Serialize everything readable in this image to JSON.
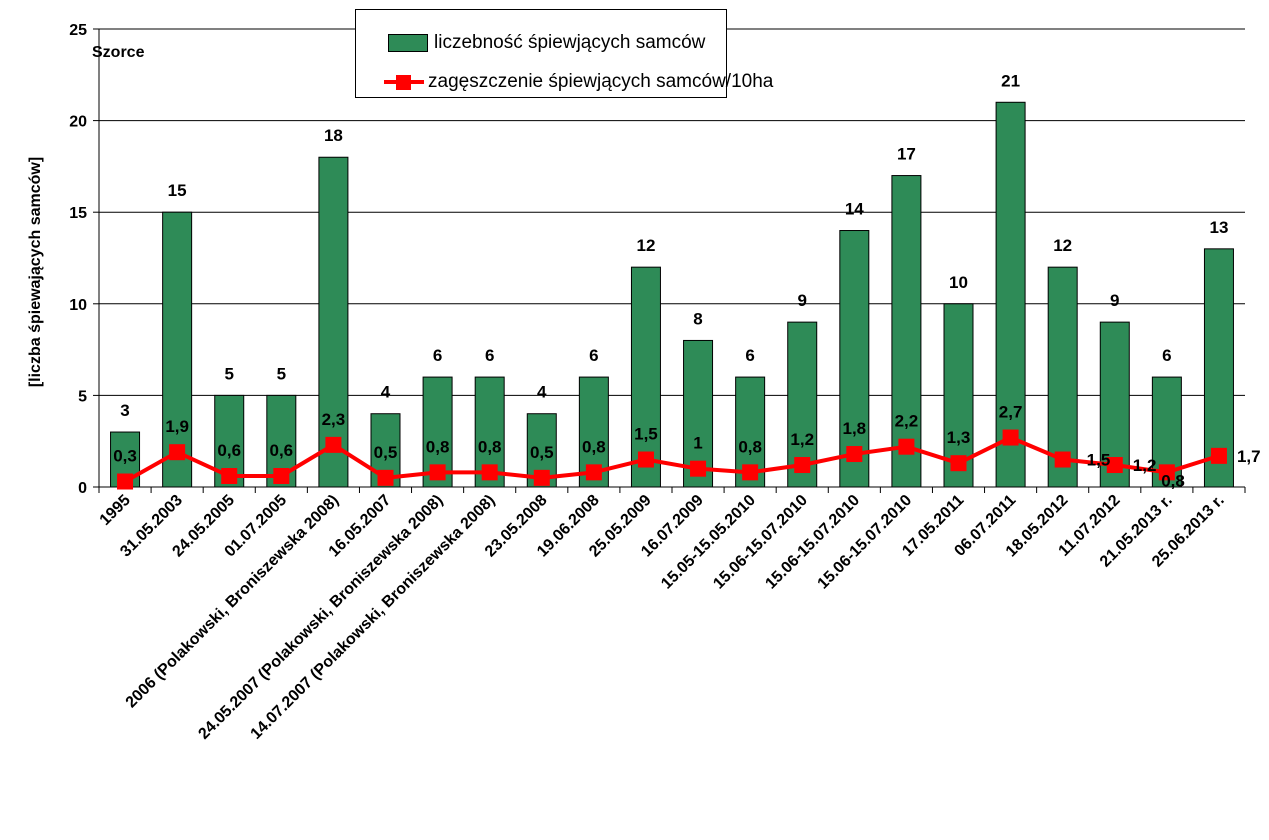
{
  "chart_data": {
    "type": "bar",
    "title": "",
    "xlabel": "",
    "ylabel": "[liczba śpiewających samców]",
    "corner_label": "Szorce",
    "ylim": [
      0,
      25
    ],
    "yticks": [
      0,
      5,
      10,
      15,
      20,
      25
    ],
    "grid": true,
    "legend_position": "top-center",
    "colors": {
      "bar": "#2e8b57",
      "line": "#ff0000"
    },
    "categories": [
      "1995",
      "31.05.2003",
      "24.05.2005",
      "01.07.2005",
      "2006 (Polakowski, Broniszewska 2008)",
      "16.05.2007",
      "24.05.2007 (Polakowski, Broniszewska 2008)",
      "14.07.2007 (Polakowski, Broniszewska 2008)",
      "23.05.2008",
      "19.06.2008",
      "25.05.2009",
      "16.07.2009",
      "15.05-15.05.2010",
      "15.06-15.07.2010",
      "15.06-15.07.2010",
      "15.06-15.07.2010",
      "17.05.2011",
      "06.07.2011",
      "18.05.2012",
      "11.07.2012",
      "21.05.2013 r.",
      "25.06.2013 r."
    ],
    "series": [
      {
        "name": "liczebność śpiewjących samców",
        "type": "bar",
        "values": [
          3,
          15,
          5,
          5,
          18,
          4,
          6,
          6,
          4,
          6,
          12,
          8,
          6,
          9,
          14,
          17,
          10,
          21,
          12,
          9,
          6,
          13
        ],
        "labels": [
          "3",
          "15",
          "5",
          "5",
          "18",
          "4",
          "6",
          "6",
          "4",
          "6",
          "12",
          "8",
          "6",
          "9",
          "14",
          "17",
          "10",
          "21",
          "12",
          "9",
          "6",
          "13"
        ]
      },
      {
        "name": "zagęszczenie śpiewjących samców/10ha",
        "type": "line",
        "values": [
          0.3,
          1.9,
          0.6,
          0.6,
          2.3,
          0.5,
          0.8,
          0.8,
          0.5,
          0.8,
          1.5,
          1,
          0.8,
          1.2,
          1.8,
          2.2,
          1.3,
          2.7,
          1.5,
          1.2,
          0.8,
          1.7
        ],
        "labels": [
          "0,3",
          "1,9",
          "0,6",
          "0,6",
          "2,3",
          "0,5",
          "0,8",
          "0,8",
          "0,5",
          "0,8",
          "1,5",
          "1",
          "0,8",
          "1,2",
          "1,8",
          "2,2",
          "1,3",
          "2,7",
          "1,5",
          "1,2",
          "0,8",
          "1,7"
        ]
      }
    ]
  }
}
